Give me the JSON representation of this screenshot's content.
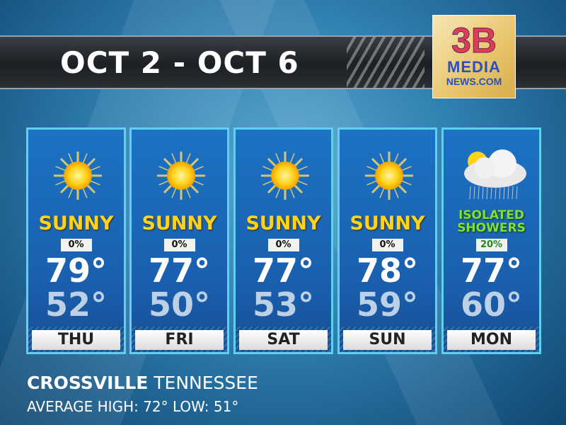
{
  "header": {
    "title": "OCT 2 - OCT 6"
  },
  "logo": {
    "line1": "3B",
    "line2": "MEDIA",
    "line3": "NEWS.COM"
  },
  "days": [
    {
      "day": "THU",
      "condition": "SUNNY",
      "icon": "sun-icon",
      "precip": "0%",
      "high": "79°",
      "low": "52°"
    },
    {
      "day": "FRI",
      "condition": "SUNNY",
      "icon": "sun-icon",
      "precip": "0%",
      "high": "77°",
      "low": "50°"
    },
    {
      "day": "SAT",
      "condition": "SUNNY",
      "icon": "sun-icon",
      "precip": "0%",
      "high": "77°",
      "low": "53°"
    },
    {
      "day": "SUN",
      "condition": "SUNNY",
      "icon": "sun-icon",
      "precip": "0%",
      "high": "78°",
      "low": "59°"
    },
    {
      "day": "MON",
      "condition": "ISOLATED SHOWERS",
      "icon": "partly-cloudy-rain-icon",
      "precip": "20%",
      "high": "77°",
      "low": "60°"
    }
  ],
  "location": {
    "city": "CROSSVILLE",
    "state": "TENNESSEE"
  },
  "average": "AVERAGE HIGH: 72° LOW: 51°",
  "colors": {
    "sunny": "#ffd21c",
    "showers": "#7fe03a",
    "panel_border": "#5fd0f0"
  }
}
